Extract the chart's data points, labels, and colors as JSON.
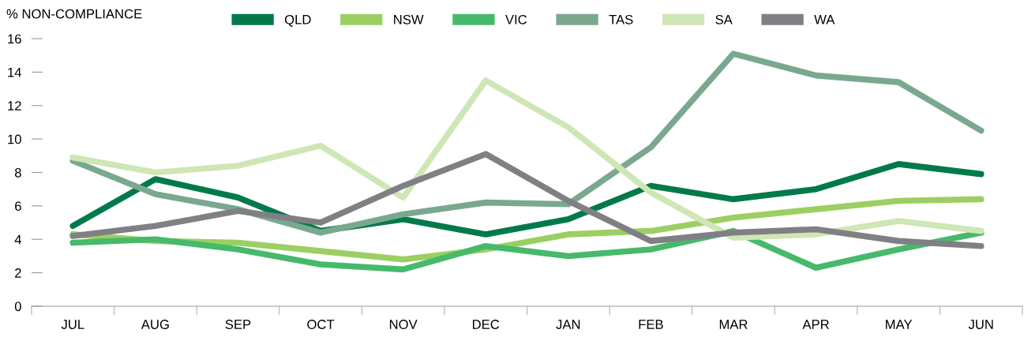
{
  "chart_data": {
    "type": "line",
    "ylabel": "% NON-COMPLIANCE",
    "categories": [
      "JUL",
      "AUG",
      "SEP",
      "OCT",
      "NOV",
      "DEC",
      "JAN",
      "FEB",
      "MAR",
      "APR",
      "MAY",
      "JUN"
    ],
    "series": [
      {
        "name": "QLD",
        "color": "#007a4a",
        "values": [
          4.8,
          7.6,
          6.5,
          4.5,
          5.2,
          4.3,
          5.2,
          7.2,
          6.4,
          7.0,
          8.5,
          7.9
        ]
      },
      {
        "name": "NSW",
        "color": "#9ccf63",
        "values": [
          4.3,
          3.9,
          3.8,
          3.3,
          2.8,
          3.4,
          4.3,
          4.5,
          5.3,
          5.8,
          6.3,
          6.4
        ]
      },
      {
        "name": "VIC",
        "color": "#47b96b",
        "values": [
          3.8,
          4.0,
          3.4,
          2.5,
          2.2,
          3.6,
          3.0,
          3.4,
          4.5,
          2.3,
          3.4,
          4.4
        ]
      },
      {
        "name": "TAS",
        "color": "#7aa88e",
        "values": [
          8.7,
          6.7,
          5.8,
          4.4,
          5.5,
          6.2,
          6.1,
          9.5,
          15.1,
          13.8,
          13.4,
          10.5
        ]
      },
      {
        "name": "SA",
        "color": "#cfe6b5",
        "values": [
          8.9,
          8.0,
          8.4,
          9.6,
          6.5,
          13.5,
          10.7,
          6.8,
          4.1,
          4.3,
          5.1,
          4.5
        ]
      },
      {
        "name": "WA",
        "color": "#808084",
        "values": [
          4.2,
          4.8,
          5.7,
          5.0,
          7.2,
          9.1,
          6.3,
          3.9,
          4.4,
          4.6,
          3.9,
          3.6
        ]
      }
    ],
    "ylim": [
      0,
      16
    ],
    "yticks": [
      0,
      2,
      4,
      6,
      8,
      10,
      12,
      14,
      16
    ],
    "grid": false,
    "legend": "top",
    "marker": "none",
    "line_style": "solid"
  }
}
